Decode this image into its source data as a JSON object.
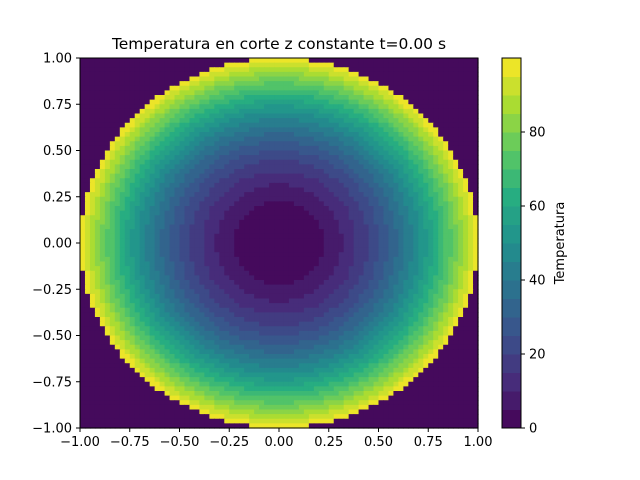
{
  "chart_data": {
    "type": "heatmap",
    "title": "Temperatura en corte z constante t=0.00 s",
    "xlabel": "",
    "ylabel": "",
    "xlim": [
      -1.0,
      1.0
    ],
    "ylim": [
      -1.0,
      1.0
    ],
    "x_ticks": [
      "−1.00",
      "−0.75",
      "−0.50",
      "−0.25",
      "0.00",
      "0.25",
      "0.50",
      "0.75",
      "1.00"
    ],
    "y_ticks": [
      "1.00",
      "0.75",
      "0.50",
      "0.25",
      "0.00",
      "−0.25",
      "−0.50",
      "−0.75",
      "−1.00"
    ],
    "grid": false,
    "colormap": "viridis",
    "colorbar": {
      "label": "Temperatura",
      "range": [
        0,
        100
      ],
      "levels": 20,
      "ticks": [
        "0",
        "20",
        "40",
        "60",
        "80"
      ]
    },
    "field": {
      "description": "Radial temperature field inside the unit disk: 0 at the centre rising to 100 at radius 1; value 0 outside the disk",
      "center": [
        0.0,
        0.0
      ],
      "radius": 1.0,
      "value_at_center": 0,
      "value_at_edge": 100,
      "value_outside": 0,
      "grid_points": 80
    },
    "colors": {
      "low": "#440154",
      "high": "#fde725"
    }
  }
}
